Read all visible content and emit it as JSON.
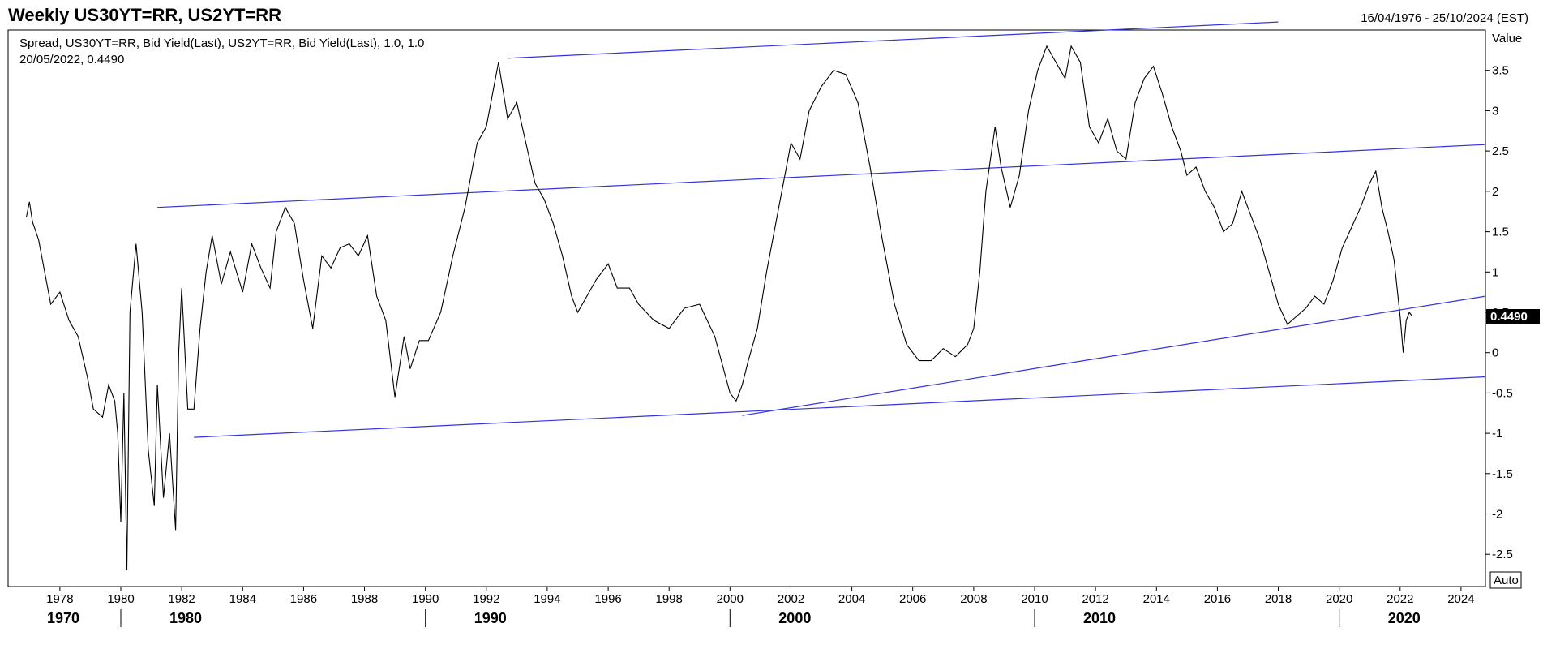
{
  "header": {
    "title": "Weekly US30YT=RR, US2YT=RR",
    "date_range": "16/04/1976 - 25/10/2024 (EST)"
  },
  "legend": {
    "series_label": "Spread, US30YT=RR, Bid Yield(Last), US2YT=RR, Bid Yield(Last),  1.0, 1.0",
    "last_point": "20/05/2022, 0.4490"
  },
  "value_axis": {
    "title": "Value",
    "auto_label": "Auto"
  },
  "price_tag": "0.4490",
  "colors": {
    "series": "#000000",
    "trendlines": "#3333dd",
    "axis": "#000000",
    "tag_bg": "#000000",
    "tag_text": "#ffffff"
  },
  "chart_data": {
    "type": "line",
    "x_range": [
      1976.3,
      2024.8
    ],
    "ylim": [
      -2.9,
      4.0
    ],
    "y_ticks": [
      -2.5,
      -2,
      -1.5,
      -1,
      -0.5,
      0,
      0.5,
      1,
      1.5,
      2,
      2.5,
      3,
      3.5
    ],
    "y_tick_labels": [
      "-2.5",
      "-2",
      "-1.5",
      "-1",
      "-0.5",
      "0",
      "0.5",
      "1",
      "1.5",
      "2",
      "2.5",
      "3",
      "3.5"
    ],
    "x_ticks": [
      1978,
      1980,
      1982,
      1984,
      1986,
      1988,
      1990,
      1992,
      1994,
      1996,
      1998,
      2000,
      2002,
      2004,
      2006,
      2008,
      2010,
      2012,
      2014,
      2016,
      2018,
      2020,
      2022,
      2024
    ],
    "x_tick_labels": [
      "1978",
      "1980",
      "1982",
      "1984",
      "1986",
      "1988",
      "1990",
      "1992",
      "1994",
      "1996",
      "1998",
      "2000",
      "2002",
      "2004",
      "2006",
      "2008",
      "2010",
      "2012",
      "2014",
      "2016",
      "2018",
      "2020",
      "2022",
      "2024"
    ],
    "decades": [
      1970,
      1980,
      1990,
      2000,
      2010,
      2020
    ],
    "decade_labels": [
      "1970",
      "1980",
      "1990",
      "2000",
      "2010",
      "2020"
    ],
    "grid": false,
    "series": [
      {
        "x": [
          1976.9,
          1977.0,
          1977.1,
          1977.3,
          1977.5,
          1977.7,
          1978.0,
          1978.3,
          1978.6,
          1978.9,
          1979.1,
          1979.4,
          1979.6,
          1979.8,
          1979.9,
          1980.0,
          1980.1,
          1980.2,
          1980.3,
          1980.5,
          1980.7,
          1980.9,
          1981.1,
          1981.2,
          1981.4,
          1981.6,
          1981.8,
          1981.9,
          1982.0,
          1982.2,
          1982.4,
          1982.6,
          1982.8,
          1983.0,
          1983.3,
          1983.6,
          1984.0,
          1984.3,
          1984.6,
          1984.9,
          1985.1,
          1985.4,
          1985.7,
          1986.0,
          1986.3,
          1986.6,
          1986.9,
          1987.2,
          1987.5,
          1987.8,
          1988.1,
          1988.4,
          1988.7,
          1989.0,
          1989.3,
          1989.5,
          1989.8,
          1990.1,
          1990.5,
          1990.9,
          1991.3,
          1991.7,
          1992.0,
          1992.4,
          1992.7,
          1993.0,
          1993.3,
          1993.6,
          1993.9,
          1994.2,
          1994.5,
          1994.8,
          1995.0,
          1995.3,
          1995.6,
          1996.0,
          1996.3,
          1996.7,
          1997.0,
          1997.5,
          1998.0,
          1998.5,
          1999.0,
          1999.5,
          2000.0,
          2000.2,
          2000.4,
          2000.6,
          2000.9,
          2001.2,
          2001.5,
          2001.8,
          2002.0,
          2002.3,
          2002.6,
          2003.0,
          2003.4,
          2003.8,
          2004.2,
          2004.6,
          2005.0,
          2005.4,
          2005.8,
          2006.2,
          2006.6,
          2007.0,
          2007.4,
          2007.8,
          2008.0,
          2008.2,
          2008.4,
          2008.7,
          2008.9,
          2009.2,
          2009.5,
          2009.8,
          2010.1,
          2010.4,
          2010.7,
          2011.0,
          2011.2,
          2011.5,
          2011.8,
          2012.1,
          2012.4,
          2012.7,
          2013.0,
          2013.3,
          2013.6,
          2013.9,
          2014.2,
          2014.5,
          2014.8,
          2015.0,
          2015.3,
          2015.6,
          2015.9,
          2016.2,
          2016.5,
          2016.8,
          2017.1,
          2017.4,
          2017.7,
          2018.0,
          2018.3,
          2018.6,
          2018.9,
          2019.2,
          2019.5,
          2019.8,
          2020.1,
          2020.4,
          2020.7,
          2021.0,
          2021.2,
          2021.4,
          2021.6,
          2021.8,
          2022.0,
          2022.1,
          2022.2,
          2022.3,
          2022.4
        ],
        "values": [
          1.68,
          1.87,
          1.62,
          1.4,
          1.0,
          0.6,
          0.75,
          0.4,
          0.2,
          -0.3,
          -0.7,
          -0.8,
          -0.4,
          -0.6,
          -1.0,
          -2.1,
          -0.5,
          -2.7,
          0.5,
          1.35,
          0.5,
          -1.2,
          -1.9,
          -0.4,
          -1.8,
          -1.0,
          -2.2,
          0.0,
          0.8,
          -0.7,
          -0.7,
          0.3,
          1.0,
          1.45,
          0.85,
          1.25,
          0.75,
          1.35,
          1.05,
          0.8,
          1.5,
          1.8,
          1.6,
          0.9,
          0.3,
          1.2,
          1.05,
          1.3,
          1.35,
          1.2,
          1.45,
          0.7,
          0.4,
          -0.55,
          0.2,
          -0.2,
          0.15,
          0.15,
          0.5,
          1.2,
          1.8,
          2.6,
          2.8,
          3.6,
          2.9,
          3.1,
          2.6,
          2.1,
          1.9,
          1.6,
          1.2,
          0.7,
          0.5,
          0.7,
          0.9,
          1.1,
          0.8,
          0.8,
          0.6,
          0.4,
          0.3,
          0.55,
          0.6,
          0.2,
          -0.5,
          -0.6,
          -0.4,
          -0.1,
          0.3,
          1.0,
          1.6,
          2.2,
          2.6,
          2.4,
          3.0,
          3.3,
          3.5,
          3.45,
          3.1,
          2.3,
          1.4,
          0.6,
          0.1,
          -0.1,
          -0.1,
          0.05,
          -0.05,
          0.1,
          0.3,
          1.0,
          2.0,
          2.8,
          2.3,
          1.8,
          2.2,
          3.0,
          3.5,
          3.8,
          3.6,
          3.4,
          3.8,
          3.6,
          2.8,
          2.6,
          2.9,
          2.5,
          2.4,
          3.1,
          3.4,
          3.55,
          3.2,
          2.8,
          2.5,
          2.2,
          2.3,
          2.0,
          1.8,
          1.5,
          1.6,
          2.0,
          1.7,
          1.4,
          1.0,
          0.6,
          0.35,
          0.45,
          0.55,
          0.7,
          0.6,
          0.9,
          1.3,
          1.55,
          1.8,
          2.1,
          2.25,
          1.8,
          1.5,
          1.15,
          0.45,
          0.0,
          0.4,
          0.5,
          0.449
        ]
      }
    ],
    "trendlines": [
      {
        "x": [
          1981.2,
          2024.8
        ],
        "values": [
          1.8,
          2.58
        ]
      },
      {
        "x": [
          1992.7,
          2018.0
        ],
        "values": [
          3.65,
          4.1
        ]
      },
      {
        "x": [
          1982.4,
          2024.8
        ],
        "values": [
          -1.05,
          -0.3
        ]
      },
      {
        "x": [
          2000.4,
          2024.8
        ],
        "values": [
          -0.78,
          0.7
        ]
      }
    ]
  }
}
